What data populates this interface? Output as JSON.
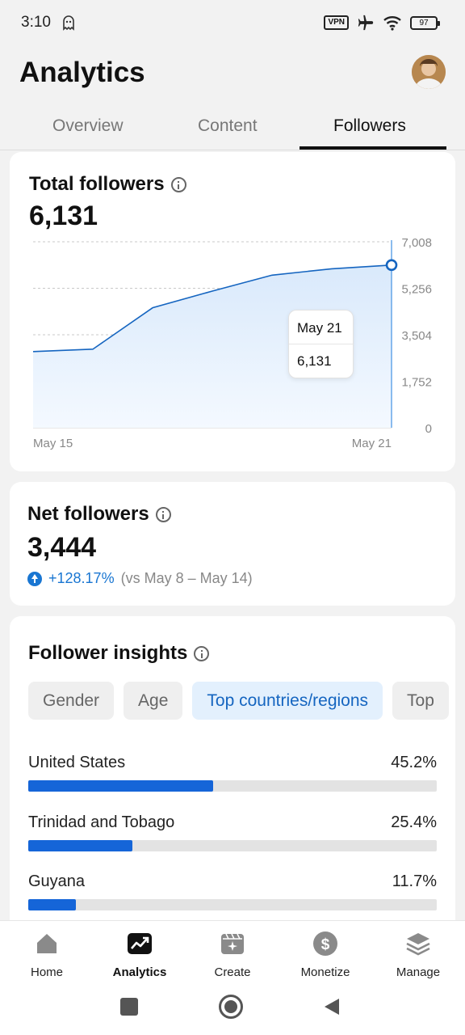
{
  "status_bar": {
    "time": "3:10",
    "vpn": "VPN",
    "battery": "97"
  },
  "header": {
    "title": "Analytics"
  },
  "tabs": [
    {
      "label": "Overview",
      "active": false
    },
    {
      "label": "Content",
      "active": false
    },
    {
      "label": "Followers",
      "active": true
    }
  ],
  "total_followers": {
    "title": "Total followers",
    "value": "6,131",
    "tooltip": {
      "date": "May 21",
      "value": "6,131"
    }
  },
  "net_followers": {
    "title": "Net followers",
    "value": "3,444",
    "delta": "+128.17%",
    "compare": "(vs May 8 – May 14)"
  },
  "insights": {
    "title": "Follower insights",
    "chips": [
      {
        "label": "Gender",
        "active": false
      },
      {
        "label": "Age",
        "active": false
      },
      {
        "label": "Top countries/regions",
        "active": true
      },
      {
        "label": "Top",
        "active": false
      }
    ],
    "countries": [
      {
        "name": "United States",
        "pct": "45.2%",
        "fraction": 0.452
      },
      {
        "name": "Trinidad and Tobago",
        "pct": "25.4%",
        "fraction": 0.254
      },
      {
        "name": "Guyana",
        "pct": "11.7%",
        "fraction": 0.117
      }
    ]
  },
  "bottom_nav": [
    {
      "label": "Home",
      "icon": "home-icon",
      "active": false
    },
    {
      "label": "Analytics",
      "icon": "analytics-icon",
      "active": true
    },
    {
      "label": "Create",
      "icon": "create-icon",
      "active": false
    },
    {
      "label": "Monetize",
      "icon": "dollar-icon",
      "active": false
    },
    {
      "label": "Manage",
      "icon": "layers-icon",
      "active": false
    }
  ],
  "colors": {
    "accent": "#1976d2",
    "area_fill": "#d9e9fb",
    "line": "#1565c0"
  },
  "chart_data": {
    "type": "area",
    "x": [
      "May 15",
      "May 16",
      "May 17",
      "May 18",
      "May 19",
      "May 20",
      "May 21"
    ],
    "values": [
      2870,
      2960,
      4520,
      5150,
      5750,
      5990,
      6131
    ],
    "xtick_labels": [
      "May 15",
      "May 21"
    ],
    "yticks": [
      0,
      1752,
      3504,
      5256,
      7008
    ],
    "ytick_labels": [
      "0",
      "1,752",
      "3,504",
      "5,256",
      "7,008"
    ],
    "ylim": [
      0,
      7008
    ],
    "grid": "dashed horizontal",
    "y_axis_side": "right",
    "highlight_point": "May 21"
  }
}
